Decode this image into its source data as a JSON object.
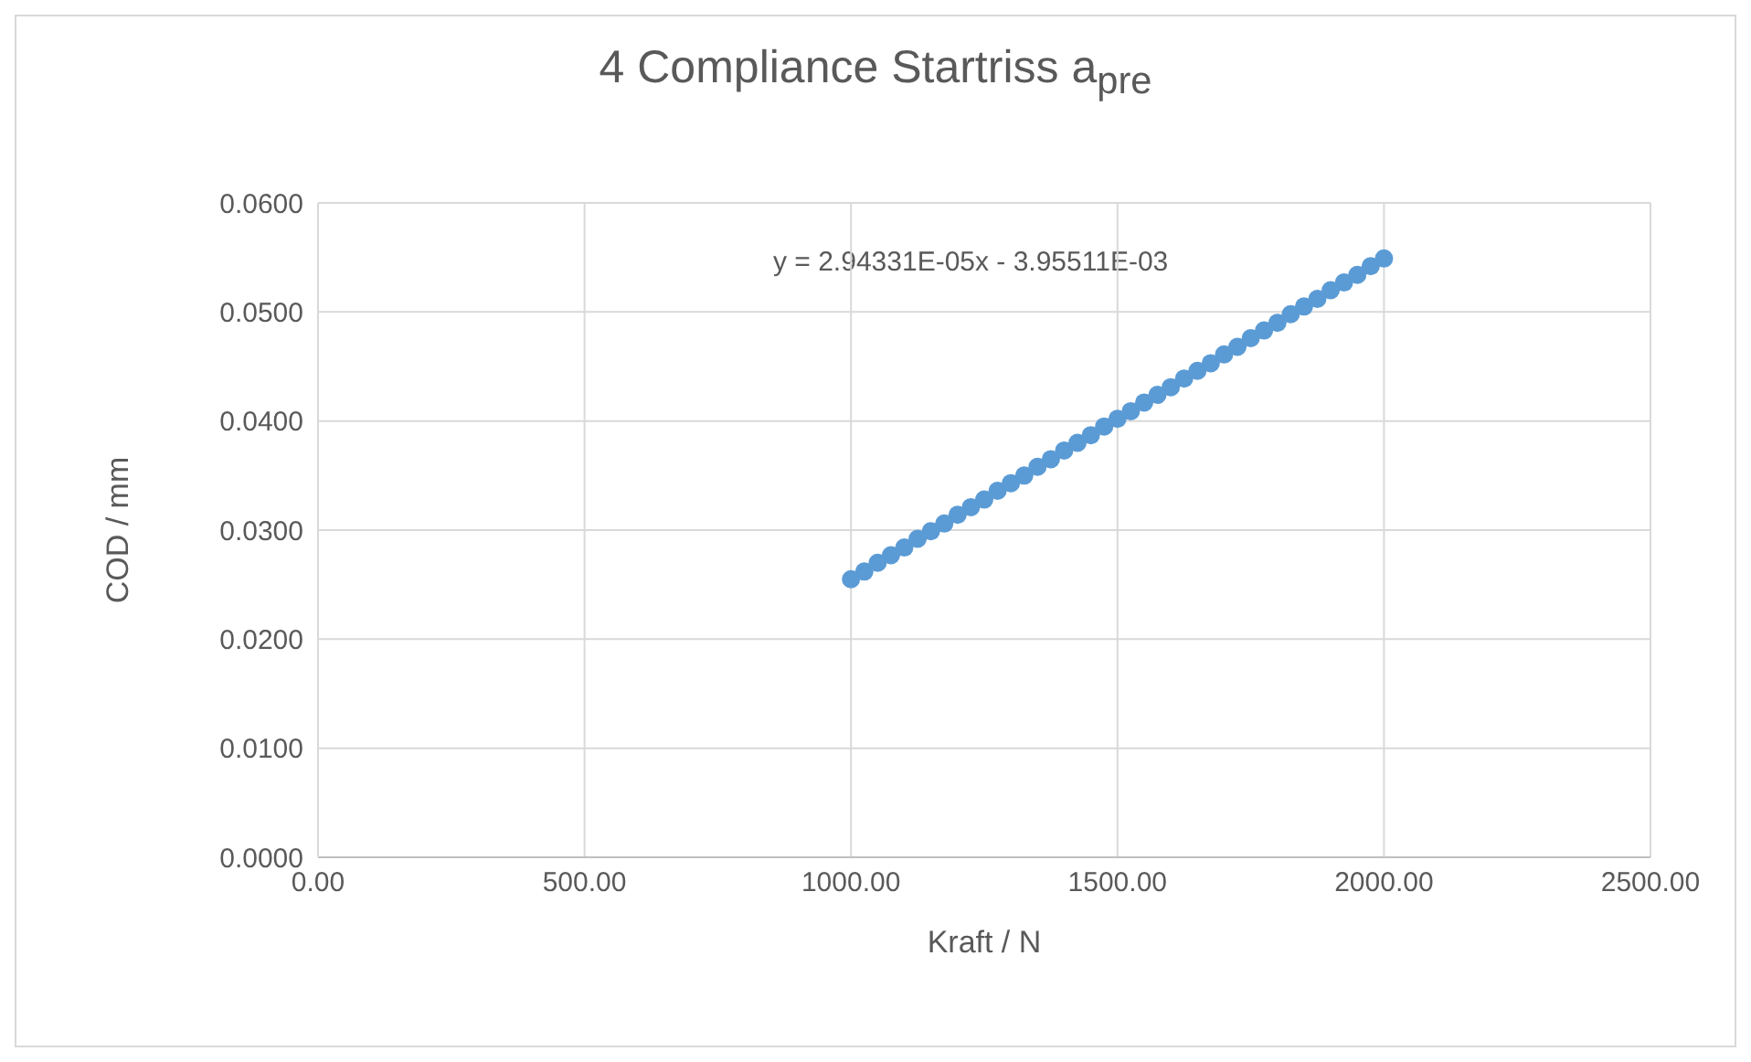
{
  "chart_data": {
    "type": "scatter",
    "title": "4 Compliance Startriss a$_{pre}$",
    "xlabel": "Kraft / N",
    "ylabel": "COD / mm",
    "annotations": [
      "y = 2.94331E-05x - 3.95511E-03"
    ],
    "x": [
      1000,
      1025,
      1050,
      1075,
      1100,
      1125,
      1150,
      1175,
      1200,
      1225,
      1250,
      1275,
      1300,
      1325,
      1350,
      1375,
      1400,
      1425,
      1450,
      1475,
      1500,
      1525,
      1550,
      1575,
      1600,
      1625,
      1650,
      1675,
      1700,
      1725,
      1750,
      1775,
      1800,
      1825,
      1850,
      1875,
      1900,
      1925,
      1950,
      1975,
      2000
    ],
    "series": [
      {
        "color": "#5b9bd5",
        "values": [
          0.0255,
          0.0262,
          0.027,
          0.0277,
          0.0284,
          0.0292,
          0.0299,
          0.0306,
          0.0314,
          0.0321,
          0.0328,
          0.0336,
          0.0343,
          0.035,
          0.0358,
          0.0365,
          0.0373,
          0.038,
          0.0387,
          0.0395,
          0.0402,
          0.0409,
          0.0417,
          0.0424,
          0.0431,
          0.0439,
          0.0446,
          0.0453,
          0.0461,
          0.0468,
          0.0476,
          0.0483,
          0.049,
          0.0498,
          0.0505,
          0.0512,
          0.052,
          0.0527,
          0.0534,
          0.0542,
          0.0549
        ]
      }
    ],
    "xlim": [
      0,
      2500
    ],
    "xticks": [
      {
        "value": 0,
        "label": "0.00"
      },
      {
        "value": 500,
        "label": "500.00"
      },
      {
        "value": 1000,
        "label": "1000.00"
      },
      {
        "value": 1500,
        "label": "1500.00"
      },
      {
        "value": 2000,
        "label": "2000.00"
      },
      {
        "value": 2500,
        "label": "2500.00"
      }
    ],
    "ylim": [
      0,
      0.06
    ],
    "yticks": [
      {
        "value": 0,
        "label": "0.0000"
      },
      {
        "value": 0.01,
        "label": "0.0100"
      },
      {
        "value": 0.02,
        "label": "0.0200"
      },
      {
        "value": 0.03,
        "label": "0.0300"
      },
      {
        "value": 0.04,
        "label": "0.0400"
      },
      {
        "value": 0.05,
        "label": "0.0500"
      },
      {
        "value": 0.06,
        "label": "0.0600"
      }
    ],
    "grid": true,
    "marker": "circle"
  }
}
